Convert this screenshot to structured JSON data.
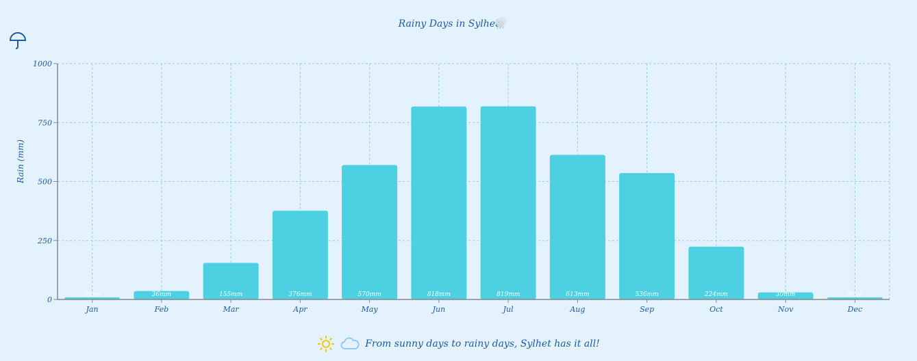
{
  "chart_data": {
    "type": "bar",
    "title": "Rainy Days in Sylhet!",
    "ylabel": "Rain (mm)",
    "xlabel": "",
    "categories": [
      "Jan",
      "Feb",
      "Mar",
      "Apr",
      "May",
      "Jun",
      "Jul",
      "Aug",
      "Sep",
      "Oct",
      "Nov",
      "Dec"
    ],
    "values": [
      9,
      36,
      155,
      376,
      570,
      818,
      819,
      613,
      536,
      224,
      30,
      9
    ],
    "value_labels": [
      "9mm",
      "36mm",
      "155mm",
      "376mm",
      "570mm",
      "818mm",
      "819mm",
      "613mm",
      "536mm",
      "224mm",
      "30mm",
      "9mm"
    ],
    "ylim": [
      0,
      1000
    ],
    "yticks": [
      "0",
      "250",
      "500",
      "750",
      "1000"
    ],
    "ytick_values": [
      0,
      250,
      500,
      750,
      1000
    ],
    "grid": true,
    "bar_color": "#4dd0e1",
    "grid_color": "#90caf9",
    "axis_color": "#888888",
    "text_color": "#1f5aa6"
  },
  "footer": {
    "text": "From sunny days to rainy days, Sylhet has it all!"
  },
  "icons": {
    "title_icon": "rain-cloud-icon",
    "umbrella": "umbrella-icon",
    "sun": "sun-icon",
    "cloud": "cloud-icon"
  }
}
